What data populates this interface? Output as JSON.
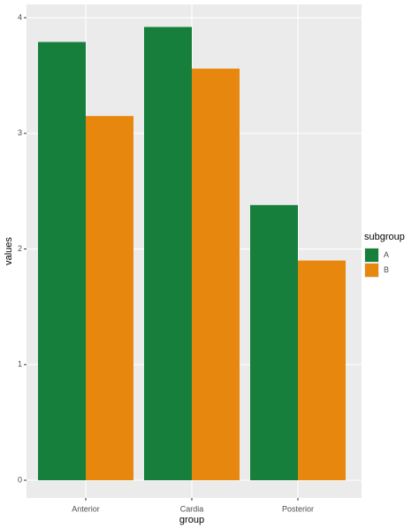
{
  "chart_data": {
    "type": "bar",
    "x_label": "group",
    "y_label": "values",
    "categories": [
      "Anterior",
      "Cardia",
      "Posterior"
    ],
    "series": [
      {
        "name": "A",
        "color": "#157f3b",
        "values": [
          3.79,
          3.92,
          2.38
        ]
      },
      {
        "name": "B",
        "color": "#e8870e",
        "values": [
          3.15,
          3.56,
          1.9
        ]
      }
    ],
    "legend_title": "subgroup",
    "legend_position": "right",
    "ylim": [
      -0.153,
      4.115
    ],
    "yticks": [
      0,
      1,
      2,
      3,
      4
    ],
    "grid": true
  }
}
